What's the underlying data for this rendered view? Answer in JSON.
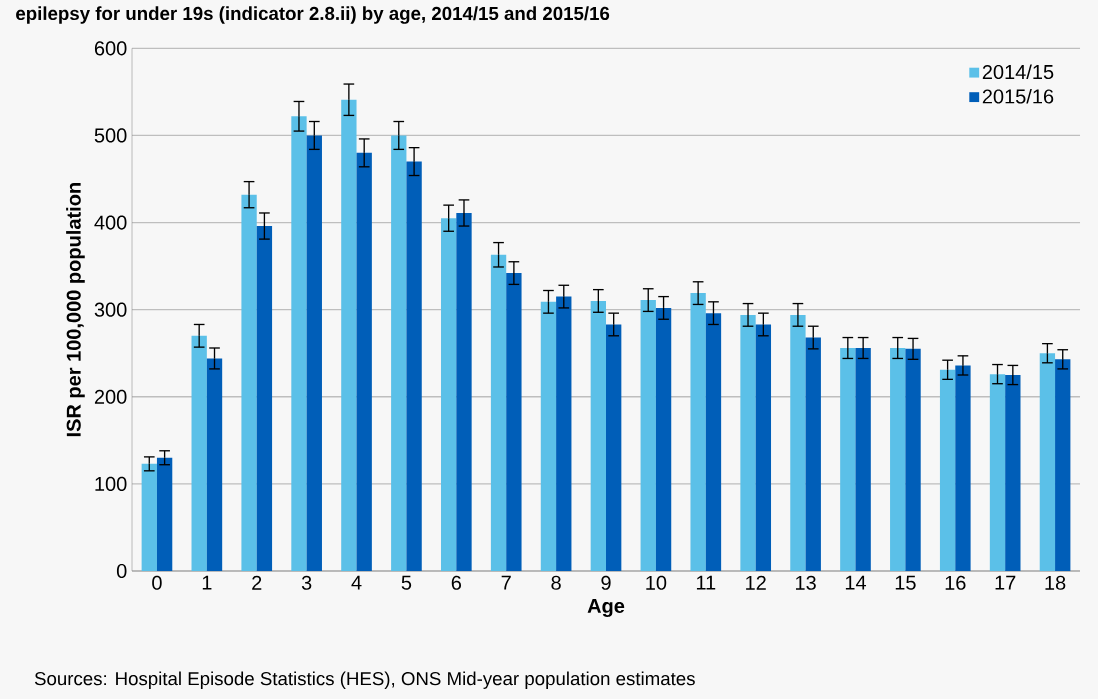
{
  "chart_data": {
    "type": "bar",
    "title": "epilepsy for under 19s (indicator 2.8.ii) by age, 2014/15 and 2015/16",
    "xlabel": "Age",
    "ylabel": "ISR per 100,000 population",
    "categories": [
      "0",
      "1",
      "2",
      "3",
      "4",
      "5",
      "6",
      "7",
      "8",
      "9",
      "10",
      "11",
      "12",
      "13",
      "14",
      "15",
      "16",
      "17",
      "18"
    ],
    "series": [
      {
        "name": "2014/15",
        "color": "#5bc0e8",
        "values": [
          123,
          270,
          432,
          522,
          541,
          500,
          405,
          363,
          309,
          310,
          311,
          319,
          294,
          294,
          256,
          256,
          231,
          226,
          250
        ],
        "errors": [
          8,
          13,
          15,
          17,
          18,
          16,
          15,
          14,
          13,
          13,
          13,
          13,
          13,
          13,
          12,
          12,
          11,
          11,
          11
        ]
      },
      {
        "name": "2015/16",
        "color": "#005eb8",
        "values": [
          130,
          244,
          396,
          500,
          480,
          470,
          411,
          342,
          315,
          283,
          302,
          296,
          283,
          268,
          256,
          255,
          236,
          225,
          243
        ],
        "errors": [
          8,
          12,
          15,
          16,
          16,
          16,
          15,
          13,
          13,
          13,
          13,
          13,
          13,
          13,
          12,
          12,
          11,
          11,
          11
        ]
      }
    ],
    "ylim": [
      0,
      600
    ],
    "yticks": [
      0,
      100,
      200,
      300,
      400,
      500,
      600
    ],
    "grid": "y",
    "legend": "top right",
    "annotations": [
      "Sources: Hospital Episode Statistics (HES), ONS Mid-year population estimates"
    ]
  }
}
